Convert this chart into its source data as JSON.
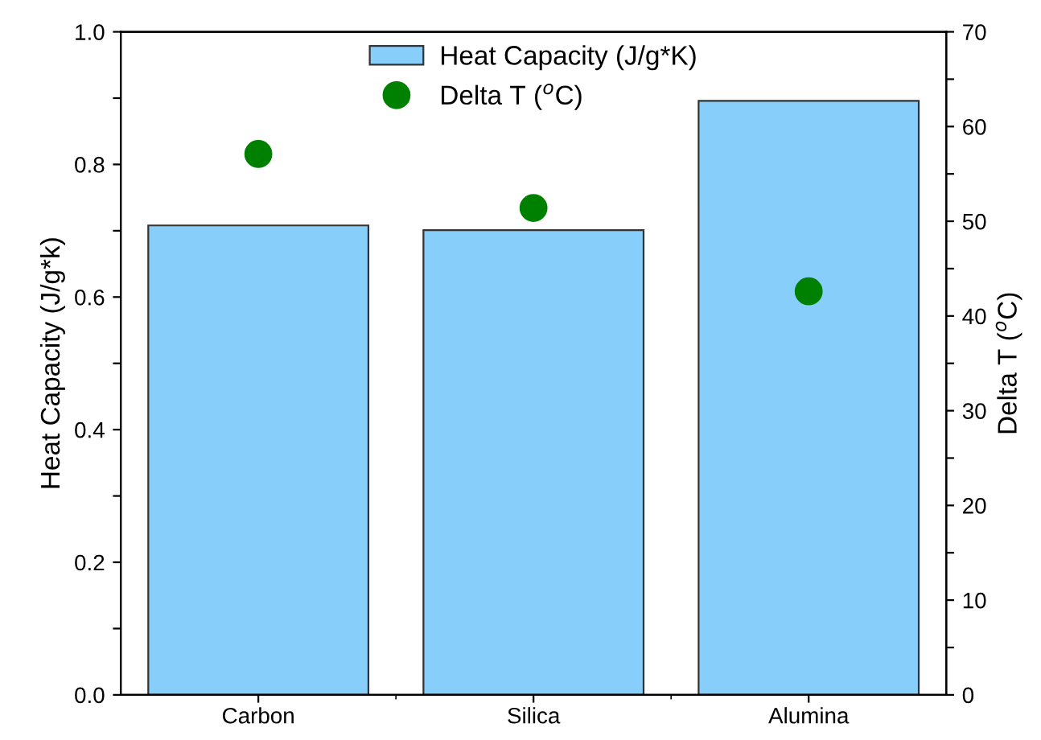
{
  "chart_data": {
    "type": "bar",
    "categories": [
      "Carbon",
      "Silica",
      "Alumina"
    ],
    "ylabel": "Heat Capacity (J/g*k)",
    "y2label": "Delta T ($^{o}$C)",
    "ylim": [
      0,
      1.0
    ],
    "yticks": [
      {
        "value": 0,
        "label": "0.0"
      },
      {
        "value": 0.1,
        "label": null
      },
      {
        "value": 0.2,
        "label": "0.2"
      },
      {
        "value": 0.3,
        "label": null
      },
      {
        "value": 0.4,
        "label": "0.4"
      },
      {
        "value": 0.5,
        "label": null
      },
      {
        "value": 0.6,
        "label": "0.6"
      },
      {
        "value": 0.7,
        "label": null
      },
      {
        "value": 0.8,
        "label": "0.8"
      },
      {
        "value": 0.9,
        "label": null
      },
      {
        "value": 1.0,
        "label": "1.0"
      }
    ],
    "y2lim": [
      0,
      70
    ],
    "y2ticks": [
      0,
      {
        "value": 5,
        "label": null
      },
      10,
      {
        "value": 15,
        "label": null
      },
      20,
      {
        "value": 25,
        "label": null
      },
      30,
      {
        "value": 35,
        "label": null
      },
      40,
      {
        "value": 45,
        "label": null
      },
      50,
      {
        "value": 55,
        "label": null
      },
      60,
      {
        "value": 65,
        "label": null
      },
      70
    ],
    "legend": "top",
    "grid": false,
    "series": [
      {
        "name": "Heat Capacity (J/g*K)",
        "color": "#87cefa",
        "values": [
          0.708,
          0.701,
          0.896
        ]
      },
      {
        "name": "Delta T ($^{o}$C)",
        "type": "scatter",
        "axis": "y2",
        "marker": "circle",
        "color": "#008000",
        "values": [
          57.1,
          51.4,
          42.6
        ]
      }
    ]
  }
}
